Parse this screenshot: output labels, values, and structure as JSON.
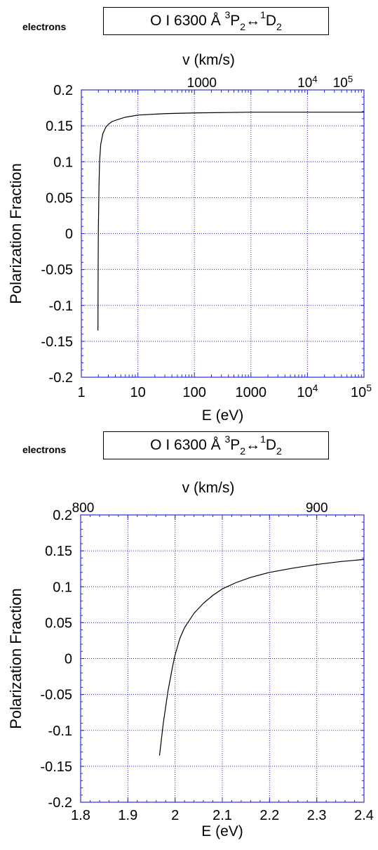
{
  "chart_data": [
    {
      "type": "line",
      "species_label": "electrons",
      "title": {
        "ion": "O I",
        "wavelength": "6300",
        "unit": "Å",
        "upper_mult": "3",
        "upper_term": "P",
        "upper_j": "2",
        "arrow": "↔",
        "lower_mult": "1",
        "lower_term": "D",
        "lower_j": "2"
      },
      "xlabel": "E (eV)",
      "ylabel": "Polarization Fraction",
      "top_axis_label": "v (km/s)",
      "x_scale": "log",
      "xlim": [
        1,
        100000
      ],
      "ylim": [
        -0.2,
        0.2
      ],
      "grid": true,
      "x_ticks": [
        {
          "value": 1,
          "label": "1"
        },
        {
          "value": 10,
          "label": "10"
        },
        {
          "value": 100,
          "label": "100"
        },
        {
          "value": 1000,
          "label": "1000"
        },
        {
          "value": 10000,
          "label": "10",
          "exp": "4"
        },
        {
          "value": 100000,
          "label": "10",
          "exp": "5"
        }
      ],
      "top_ticks": [
        {
          "value": 1000,
          "label": "1000"
        },
        {
          "value": 10000,
          "label": "10",
          "exp": "4"
        },
        {
          "value": 100000,
          "label": "10",
          "exp": "5"
        }
      ],
      "y_ticks": [
        {
          "value": 0.2,
          "label": "0.2"
        },
        {
          "value": 0.15,
          "label": "0.15"
        },
        {
          "value": 0.1,
          "label": "0.1"
        },
        {
          "value": 0.05,
          "label": "0.05"
        },
        {
          "value": 0,
          "label": "0"
        },
        {
          "value": -0.05,
          "label": "-0.05"
        },
        {
          "value": -0.1,
          "label": "-0.1"
        },
        {
          "value": -0.15,
          "label": "-0.15"
        },
        {
          "value": -0.2,
          "label": "-0.2"
        }
      ],
      "series": [
        {
          "x": [
            1.967,
            1.975,
            1.99,
            2.0,
            2.05,
            2.1,
            2.2,
            2.4,
            2.7,
            3.0,
            3.5,
            4.5,
            6,
            10,
            30,
            100,
            1000,
            10000,
            100000
          ],
          "y": [
            -0.135,
            -0.08,
            -0.02,
            0.005,
            0.065,
            0.1,
            0.124,
            0.139,
            0.148,
            0.152,
            0.156,
            0.159,
            0.162,
            0.165,
            0.167,
            0.168,
            0.169,
            0.169,
            0.169
          ]
        }
      ]
    },
    {
      "type": "line",
      "species_label": "electrons",
      "title": {
        "ion": "O I",
        "wavelength": "6300",
        "unit": "Å",
        "upper_mult": "3",
        "upper_term": "P",
        "upper_j": "2",
        "arrow": "↔",
        "lower_mult": "1",
        "lower_term": "D",
        "lower_j": "2"
      },
      "xlabel": "E (eV)",
      "ylabel": "Polarization Fraction",
      "top_axis_label": "v (km/s)",
      "x_scale": "linear",
      "xlim": [
        1.8,
        2.4
      ],
      "ylim": [
        -0.2,
        0.2
      ],
      "grid": true,
      "x_ticks": [
        {
          "value": 1.8,
          "label": "1.8"
        },
        {
          "value": 1.9,
          "label": "1.9"
        },
        {
          "value": 2.0,
          "label": "2"
        },
        {
          "value": 2.1,
          "label": "2.1"
        },
        {
          "value": 2.2,
          "label": "2.2"
        },
        {
          "value": 2.3,
          "label": "2.3"
        },
        {
          "value": 2.4,
          "label": "2.4"
        }
      ],
      "top_ticks": [
        {
          "value": 1.82,
          "label": "800"
        },
        {
          "value": 2.3,
          "label": "900"
        }
      ],
      "y_ticks": [
        {
          "value": 0.2,
          "label": "0.2"
        },
        {
          "value": 0.15,
          "label": "0.15"
        },
        {
          "value": 0.1,
          "label": "0.1"
        },
        {
          "value": 0.05,
          "label": "0.05"
        },
        {
          "value": 0,
          "label": "0"
        },
        {
          "value": -0.05,
          "label": "-0.05"
        },
        {
          "value": -0.1,
          "label": "-0.1"
        },
        {
          "value": -0.15,
          "label": "-0.15"
        },
        {
          "value": -0.2,
          "label": "-0.2"
        }
      ],
      "series": [
        {
          "x": [
            1.967,
            1.975,
            1.985,
            1.995,
            2.0,
            2.01,
            2.02,
            2.04,
            2.06,
            2.08,
            2.1,
            2.13,
            2.16,
            2.2,
            2.25,
            2.3,
            2.35,
            2.4
          ],
          "y": [
            -0.135,
            -0.09,
            -0.045,
            -0.01,
            0.005,
            0.028,
            0.043,
            0.063,
            0.077,
            0.088,
            0.097,
            0.106,
            0.113,
            0.12,
            0.126,
            0.131,
            0.135,
            0.138
          ]
        }
      ]
    }
  ]
}
